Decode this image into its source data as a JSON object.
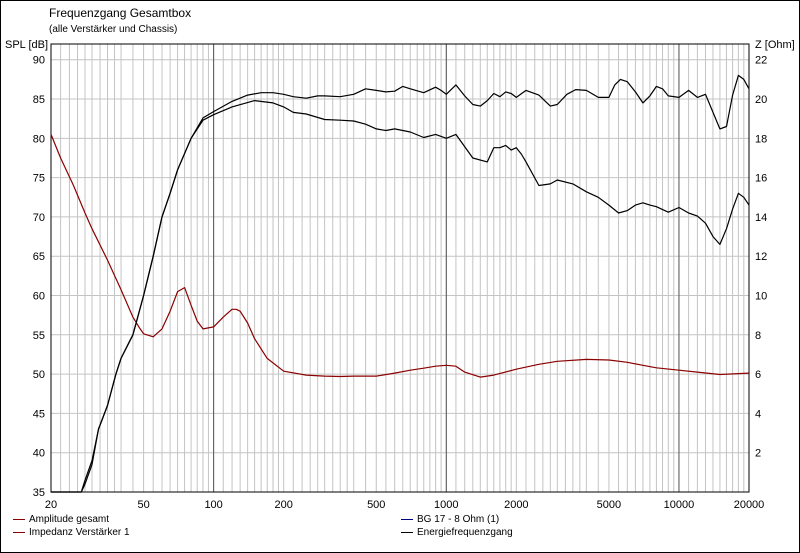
{
  "chart_data": {
    "type": "line",
    "title": "Frequenzgang Gesamtbox",
    "subtitle": "(alle Verstärker und Chassis)",
    "ylabel_left": "SPL [dB]",
    "ylabel_right": "Z [Ohm]",
    "x_scale": "log",
    "xlim": [
      20,
      20000
    ],
    "x_ticks": [
      20,
      50,
      100,
      200,
      500,
      1000,
      2000,
      5000,
      10000,
      20000
    ],
    "x_tick_labels": [
      "20",
      "50",
      "100",
      "200",
      "500",
      "1000",
      "2000",
      "5000",
      "10000",
      "20000"
    ],
    "ylim_left": [
      35,
      92
    ],
    "y_ticks_left": [
      35,
      40,
      45,
      50,
      55,
      60,
      65,
      70,
      75,
      80,
      85,
      90
    ],
    "ylim_right": [
      0,
      22.8
    ],
    "y_ticks_right": [
      2,
      4,
      6,
      8,
      10,
      12,
      14,
      16,
      18,
      20,
      22
    ],
    "grid": true,
    "series": [
      {
        "name": "Amplitude gesamt",
        "axis": "left",
        "color": "#000000",
        "x": [
          20,
          27,
          28,
          30,
          32,
          35,
          38,
          40,
          45,
          50,
          55,
          60,
          65,
          70,
          80,
          90,
          100,
          120,
          150,
          180,
          200,
          220,
          250,
          300,
          350,
          400,
          450,
          500,
          550,
          600,
          700,
          800,
          900,
          1000,
          1100,
          1300,
          1500,
          1600,
          1700,
          1800,
          1900,
          2000,
          2100,
          2200,
          2500,
          2800,
          3000,
          3500,
          4000,
          4500,
          5000,
          5500,
          6000,
          6500,
          7000,
          7500,
          8000,
          9000,
          10000,
          11000,
          12000,
          13000,
          14000,
          15000,
          16000,
          17000,
          18000,
          19000,
          20000
        ],
        "y": [
          35,
          35,
          36.5,
          39,
          43,
          46,
          50,
          52,
          55,
          60,
          65,
          70,
          73,
          76,
          80,
          82.3,
          83,
          84,
          84.8,
          84.5,
          84,
          83.3,
          83.1,
          82.4,
          82.3,
          82.2,
          81.8,
          81.2,
          81,
          81.2,
          80.8,
          80.1,
          80.5,
          80,
          80.5,
          77.5,
          77,
          78.8,
          78.8,
          79.1,
          78.5,
          78.8,
          78,
          77,
          74,
          74.2,
          74.7,
          74.2,
          73.2,
          72.5,
          71.5,
          70.5,
          70.8,
          71.5,
          71.8,
          71.5,
          71.3,
          70.6,
          71.2,
          70.5,
          70.1,
          69.2,
          67.5,
          66.5,
          68.5,
          71,
          73,
          72.5,
          71.5
        ]
      },
      {
        "name": "Impedanz Verstärker 1",
        "axis": "right",
        "color": "#8b0000",
        "x": [
          20,
          22,
          25,
          28,
          30,
          35,
          40,
          45,
          48,
          50,
          55,
          60,
          65,
          70,
          75,
          80,
          85,
          90,
          100,
          110,
          120,
          125,
          130,
          140,
          150,
          170,
          200,
          250,
          300,
          350,
          400,
          500,
          600,
          700,
          800,
          900,
          1000,
          1100,
          1200,
          1400,
          1600,
          2000,
          2500,
          3000,
          4000,
          5000,
          6000,
          7000,
          8000,
          10000,
          12000,
          15000,
          20000
        ],
        "y": [
          18.2,
          17,
          15.6,
          14.2,
          13.4,
          11.8,
          10.3,
          8.9,
          8.35,
          8.05,
          7.9,
          8.3,
          9.2,
          10.2,
          10.4,
          9.5,
          8.7,
          8.3,
          8.4,
          8.9,
          9.3,
          9.3,
          9.2,
          8.6,
          7.8,
          6.8,
          6.15,
          5.95,
          5.9,
          5.88,
          5.9,
          5.9,
          6.05,
          6.2,
          6.3,
          6.4,
          6.45,
          6.4,
          6.1,
          5.85,
          5.95,
          6.25,
          6.5,
          6.65,
          6.75,
          6.72,
          6.6,
          6.45,
          6.32,
          6.2,
          6.1,
          5.98,
          6.05
        ]
      },
      {
        "name": "BG 17 - 8 Ohm  (1)",
        "axis": "left",
        "color": "#000080",
        "x": [],
        "y": []
      },
      {
        "name": "Energiefrequenzgang",
        "axis": "left",
        "color": "#000000",
        "x": [
          20,
          27,
          28,
          30,
          32,
          35,
          38,
          40,
          45,
          50,
          55,
          60,
          65,
          70,
          80,
          90,
          100,
          120,
          140,
          160,
          180,
          200,
          220,
          250,
          280,
          300,
          350,
          400,
          450,
          500,
          550,
          600,
          650,
          700,
          800,
          900,
          950,
          1000,
          1100,
          1200,
          1300,
          1400,
          1500,
          1600,
          1700,
          1800,
          1900,
          2000,
          2200,
          2500,
          2800,
          3000,
          3300,
          3600,
          4000,
          4500,
          5000,
          5300,
          5600,
          6000,
          6500,
          7000,
          7500,
          8000,
          8500,
          9000,
          10000,
          11000,
          12000,
          13000,
          14000,
          15000,
          16000,
          17000,
          18000,
          19000,
          20000
        ],
        "y": [
          35,
          35,
          36,
          38.5,
          43,
          46,
          50,
          52,
          55,
          60,
          65,
          70,
          73,
          76,
          80,
          82.6,
          83.4,
          84.7,
          85.5,
          85.8,
          85.8,
          85.6,
          85.3,
          85.1,
          85.4,
          85.4,
          85.3,
          85.6,
          86.3,
          86.1,
          85.9,
          86,
          86.6,
          86.3,
          85.8,
          86.5,
          86.1,
          85.6,
          86.8,
          85.4,
          84.3,
          84.1,
          84.8,
          85.7,
          85.3,
          85.9,
          85.7,
          85.2,
          86.1,
          85.5,
          84.1,
          84.3,
          85.6,
          86.2,
          86.1,
          85.2,
          85.2,
          86.8,
          87.5,
          87.2,
          85.9,
          84.5,
          85.4,
          86.6,
          86.3,
          85.4,
          85.2,
          86.1,
          85.2,
          85.6,
          83.3,
          81.2,
          81.5,
          85.5,
          88,
          87.5,
          86.3
        ]
      }
    ]
  }
}
